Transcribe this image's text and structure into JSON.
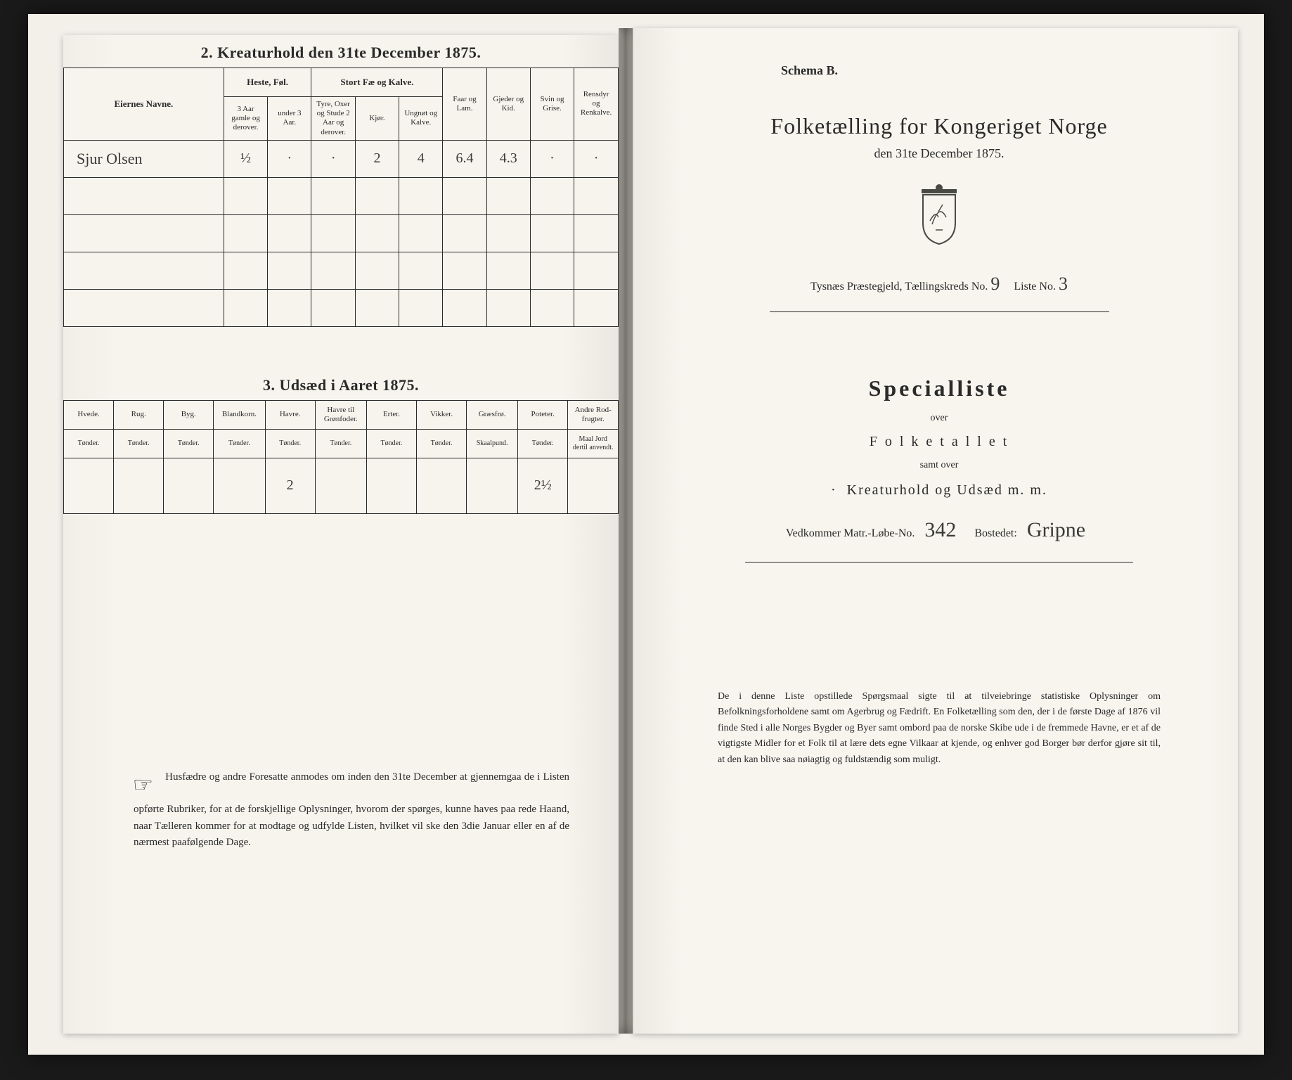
{
  "colors": {
    "paper": "#f6f4ed",
    "ink": "#2a2a2a",
    "background": "#1a1a1a",
    "gutter_dark": "#8a887e"
  },
  "left": {
    "kreatur": {
      "title": "2.  Kreaturhold den 31te December 1875.",
      "head_eiernes": "Eiernes Navne.",
      "head_heste": "Heste, Føl.",
      "head_stortfae": "Stort Fæ og Kalve.",
      "head_faar": "Faar og Lam.",
      "head_gjeder": "Gjeder og Kid.",
      "head_svin": "Svin og Grise.",
      "head_rensdyr": "Rensdyr og Renkalve.",
      "sub_heste_1": "3 Aar gamle og derover.",
      "sub_heste_2": "under 3 Aar.",
      "sub_fae_1": "Tyre, Oxer og Stude 2 Aar og derover.",
      "sub_fae_2": "Kjør.",
      "sub_fae_3": "Ungnøt og Kalve.",
      "rows": [
        {
          "navn": "Sjur Olsen",
          "h1": "½",
          "h2": "·",
          "f1": "·",
          "f2": "2",
          "f3": "4",
          "faar": "6.4",
          "gjed": "4.3",
          "svin": "·",
          "ren": "·"
        },
        {
          "navn": "",
          "h1": "",
          "h2": "",
          "f1": "",
          "f2": "",
          "f3": "",
          "faar": "",
          "gjed": "",
          "svin": "",
          "ren": ""
        },
        {
          "navn": "",
          "h1": "",
          "h2": "",
          "f1": "",
          "f2": "",
          "f3": "",
          "faar": "",
          "gjed": "",
          "svin": "",
          "ren": ""
        },
        {
          "navn": "",
          "h1": "",
          "h2": "",
          "f1": "",
          "f2": "",
          "f3": "",
          "faar": "",
          "gjed": "",
          "svin": "",
          "ren": ""
        },
        {
          "navn": "",
          "h1": "",
          "h2": "",
          "f1": "",
          "f2": "",
          "f3": "",
          "faar": "",
          "gjed": "",
          "svin": "",
          "ren": ""
        }
      ]
    },
    "udsaed": {
      "title": "3.  Udsæd i Aaret 1875.",
      "cols": [
        {
          "h": "Hvede.",
          "u": "Tønder."
        },
        {
          "h": "Rug.",
          "u": "Tønder."
        },
        {
          "h": "Byg.",
          "u": "Tønder."
        },
        {
          "h": "Blandkorn.",
          "u": "Tønder."
        },
        {
          "h": "Havre.",
          "u": "Tønder."
        },
        {
          "h": "Havre til Grønfoder.",
          "u": "Tønder."
        },
        {
          "h": "Erter.",
          "u": "Tønder."
        },
        {
          "h": "Vikker.",
          "u": "Tønder."
        },
        {
          "h": "Græsfrø.",
          "u": "Skaalpund."
        },
        {
          "h": "Poteter.",
          "u": "Tønder."
        },
        {
          "h": "Andre Rod-frugter.",
          "u": "Maal Jord dertil anvendt."
        }
      ],
      "row": [
        "",
        "",
        "",
        "",
        "2",
        "",
        "",
        "",
        "",
        "2½",
        ""
      ]
    },
    "notice": "Husfædre og andre Foresatte anmodes om inden den 31te December at gjennemgaa de i Listen opførte Rubriker, for at de forskjellige Oplysninger, hvorom der spørges, kunne haves paa rede Haand, naar Tælleren kommer for at modtage og udfylde Listen, hvilket vil ske den 3die Januar eller en af de nærmest paafølgende Dage."
  },
  "right": {
    "schema": "Schema B.",
    "main_title": "Folketælling for Kongeriget Norge",
    "subdate": "den 31te December 1875.",
    "district_prefix": "Tysnæs  Præstegjeld, Tællingskreds No.",
    "kreds_no": "9",
    "liste_label": "Liste No.",
    "liste_no": "3",
    "special": "Specialliste",
    "over": "over",
    "folketallet": "F o l k e t a l l e t",
    "samt": "samt over",
    "kreat": "Kreaturhold og Udsæd m. m.",
    "matr_label": "Vedkommer Matr.-Løbe-No.",
    "matr_no": "342",
    "bosted_label": "Bostedet:",
    "bosted": "Gripne",
    "bottom": "De i denne Liste opstillede Spørgsmaal sigte til at tilveiebringe statistiske Oplysninger om Befolkningsforholdene samt om Agerbrug og Fædrift. En Folketælling som den, der i de første Dage af 1876 vil finde Sted i alle Norges Bygder og Byer samt ombord paa de norske Skibe ude i de fremmede Havne, er et af de vigtigste Midler for et Folk til at lære dets egne Vilkaar at kjende, og enhver god Borger bør derfor gjøre sit til, at den kan blive saa nøiagtig og fuldstændig som muligt."
  }
}
